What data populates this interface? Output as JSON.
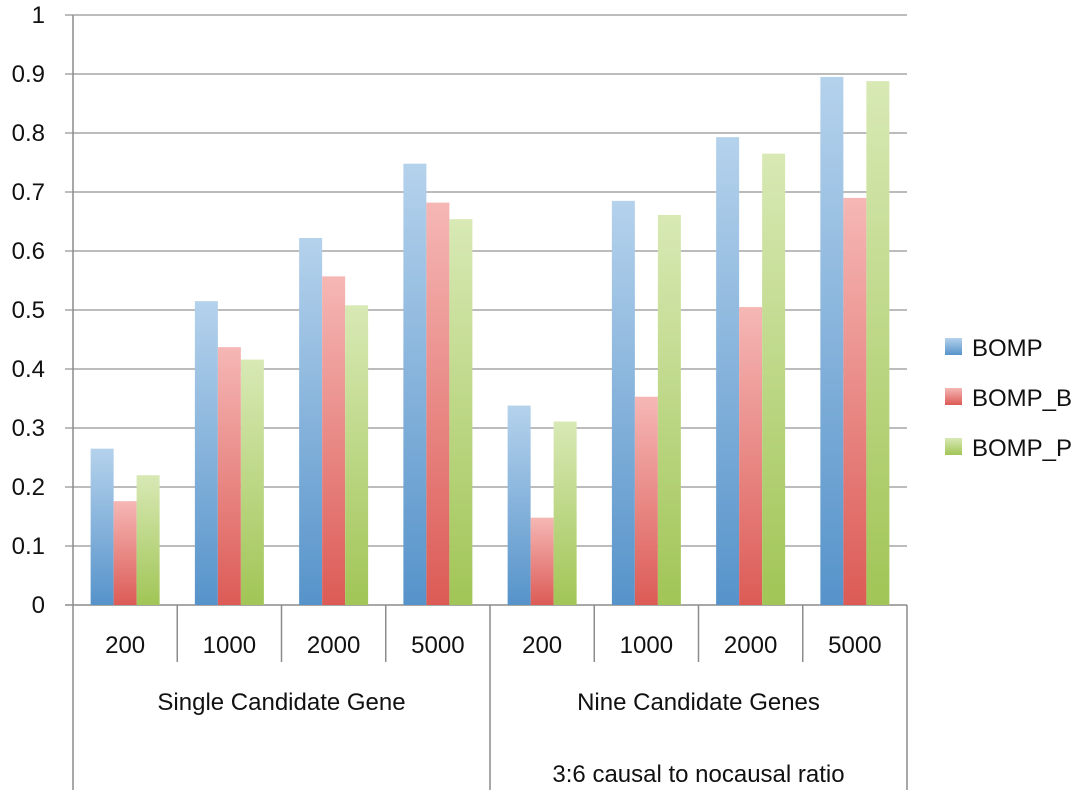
{
  "chart_data": {
    "type": "bar",
    "title": "",
    "xlabel": "",
    "ylabel": "",
    "ylim": [
      0,
      1
    ],
    "y_ticks": [
      "0",
      "0.1",
      "0.2",
      "0.3",
      "0.4",
      "0.5",
      "0.6",
      "0.7",
      "0.8",
      "0.9",
      "1"
    ],
    "grid": "horizontal",
    "legend_position": "right",
    "categories": [
      "200",
      "1000",
      "2000",
      "5000",
      "200",
      "1000",
      "2000",
      "5000"
    ],
    "groups": [
      {
        "label": "Single Candidate Gene",
        "sublabel": "",
        "span": [
          0,
          3
        ]
      },
      {
        "label": "Nine Candidate Genes",
        "sublabel": "3:6 causal to nocausal ratio",
        "span": [
          4,
          7
        ]
      }
    ],
    "series": [
      {
        "name": "BOMP",
        "color": "#5b9bd5",
        "values": [
          0.265,
          0.515,
          0.622,
          0.748,
          0.338,
          0.685,
          0.793,
          0.895
        ]
      },
      {
        "name": "BOMP_B",
        "color": "#e8605a",
        "values": [
          0.176,
          0.437,
          0.557,
          0.682,
          0.148,
          0.353,
          0.505,
          0.69
        ]
      },
      {
        "name": "BOMP_P",
        "color": "#a9cf5a",
        "values": [
          0.22,
          0.416,
          0.508,
          0.654,
          0.311,
          0.661,
          0.765,
          0.888
        ]
      }
    ]
  }
}
